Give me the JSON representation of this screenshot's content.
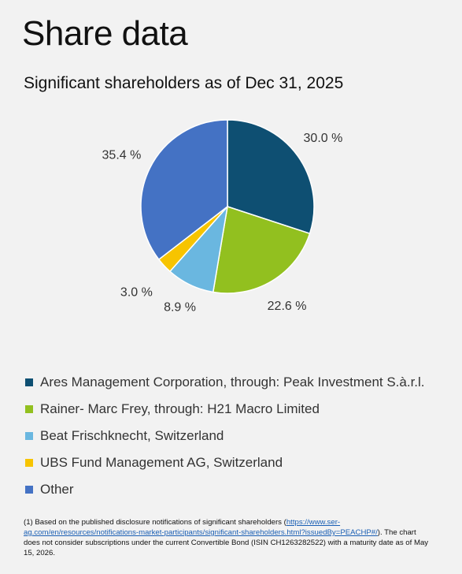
{
  "page": {
    "title": "Share data",
    "subtitle": "Significant shareholders as of Dec 31, 2025"
  },
  "chart_data": {
    "type": "pie",
    "title": "Significant shareholders as of Dec 31, 2025",
    "legend_position": "bottom",
    "categories": [
      "Ares Management Corporation, through: Peak Investment S.à.r.l.",
      "Rainer- Marc Frey, through: H21 Macro Limited",
      "Beat Frischknecht, Switzerland",
      "UBS Fund Management AG, Switzerland",
      "Other"
    ],
    "values": [
      30.0,
      22.6,
      8.9,
      3.0,
      35.4
    ],
    "labels": [
      "30.0 %",
      "22.6 %",
      "8.9 %",
      "3.0 %",
      "35.4 %"
    ],
    "colors": [
      "#0e4f72",
      "#92c01f",
      "#6ab7e0",
      "#f7c400",
      "#4472c4"
    ]
  },
  "footnote": {
    "prefix": "(1) Based on the published disclosure notifications of significant shareholders (",
    "link": "https://www.ser-ag.com/en/resources/notifications-market-participants/significant-shareholders.html?issuedBy=PEACHP#/",
    "suffix": "). The chart does not consider subscriptions under the current Convertible Bond (ISIN CH1263282522) with a maturity date as of May 15, 2026."
  }
}
